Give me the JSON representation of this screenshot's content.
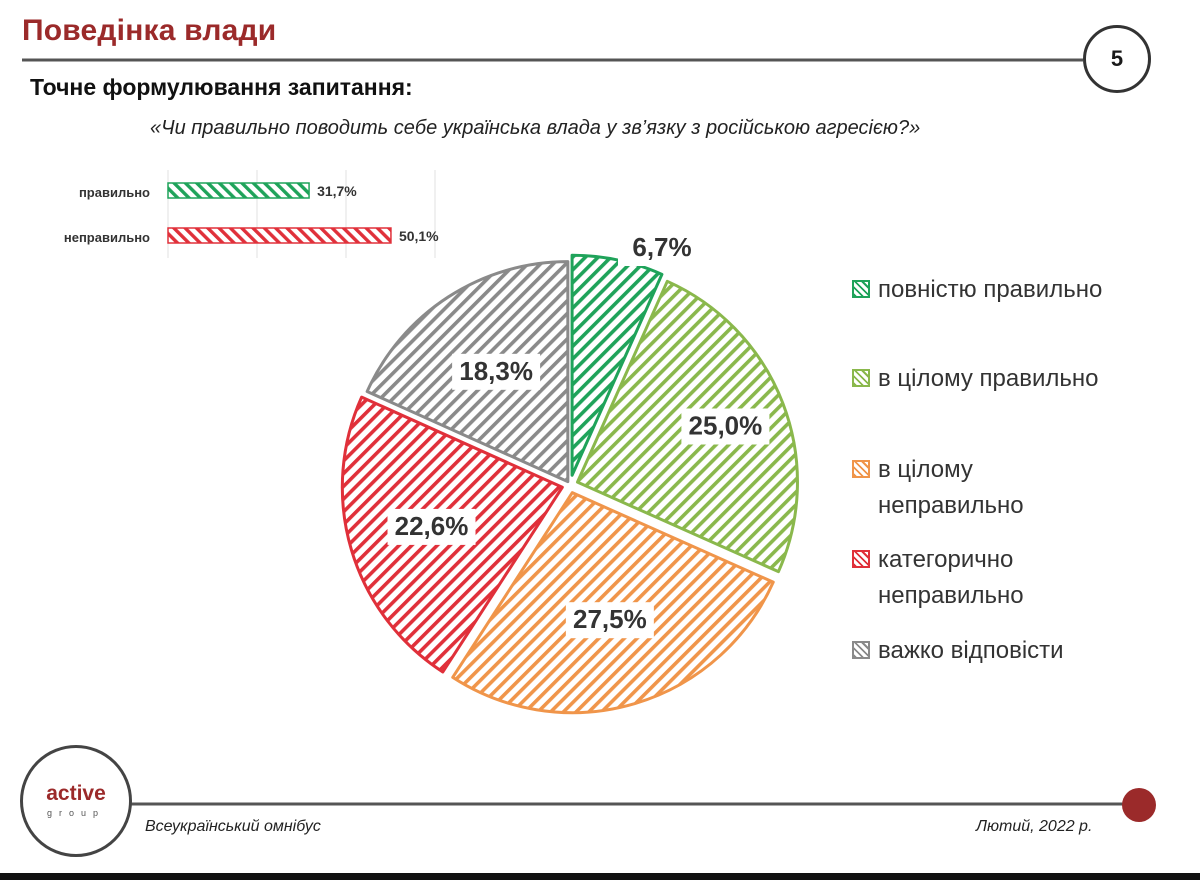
{
  "header": {
    "title": "Поведінка влади",
    "subtitle": "Точне формулювання запитання:",
    "question": "«Чи правильно поводить себе українська влада у зв’язку з російською агресією?»",
    "page_number": "5"
  },
  "footer": {
    "logo_word": "active",
    "logo_sub": "group",
    "left_text": "Всеукраїнський омнібус",
    "right_text": "Лютий, 2022 р."
  },
  "colors": {
    "brand": "#9b2a2a",
    "green": "#1fa35a",
    "light_green": "#8ab84c",
    "orange": "#f0954a",
    "red": "#e0303a",
    "gray": "#8a8a8a"
  },
  "chart_data": [
    {
      "type": "bar",
      "orientation": "horizontal",
      "categories": [
        "правильно",
        "неправильно"
      ],
      "values": [
        31.7,
        50.1
      ],
      "value_labels": [
        "31,7%",
        "50,1%"
      ],
      "colors": [
        "#1fa35a",
        "#e0303a"
      ],
      "xlim": [
        0,
        100
      ],
      "grid": true
    },
    {
      "type": "pie",
      "labels": [
        "повністю правильно",
        "в цілому правильно",
        "в цілому неправильно",
        "категорично неправильно",
        "важко відповісти"
      ],
      "values": [
        6.7,
        25.0,
        27.5,
        22.6,
        18.3
      ],
      "value_labels": [
        "6,7%",
        "25,0%",
        "27,5%",
        "22,6%",
        "18,3%"
      ],
      "colors": [
        "#1fa35a",
        "#8ab84c",
        "#f0954a",
        "#e0303a",
        "#8a8a8a"
      ],
      "start": "top, clockwise",
      "legend": "right"
    }
  ]
}
